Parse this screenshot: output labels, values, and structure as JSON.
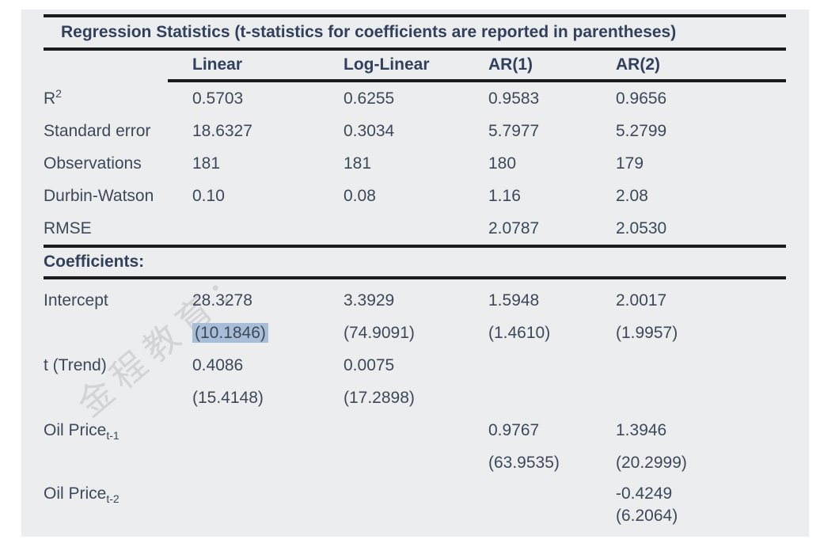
{
  "watermark": {
    "text": "金程教育："
  },
  "colors": {
    "page_background": "#ffffff",
    "panel_background": "#ebedee",
    "body_text": "#3d4859",
    "heading_text": "#33405c",
    "rule": "#1a1c20",
    "highlight": "#a8bed8",
    "watermark": "#d2d3d5"
  },
  "table": {
    "title": "Regression Statistics (t-statistics for coefficients are reported in parentheses)",
    "columns": [
      "Linear",
      "Log-Linear",
      "AR(1)",
      "AR(2)"
    ],
    "stats_rows": [
      {
        "label": "R",
        "label_sup": "2",
        "values": [
          "0.5703",
          "0.6255",
          "0.9583",
          "0.9656"
        ]
      },
      {
        "label": "Standard error",
        "values": [
          "18.6327",
          "0.3034",
          "5.7977",
          "5.2799"
        ]
      },
      {
        "label": "Observations",
        "values": [
          "181",
          "181",
          "180",
          "179"
        ]
      },
      {
        "label": "Durbin-Watson",
        "values": [
          "0.10",
          "0.08",
          "1.16",
          "2.08"
        ]
      },
      {
        "label": "RMSE",
        "values": [
          "",
          "",
          "2.0787",
          "2.0530"
        ]
      }
    ],
    "section_label": "Coefficients:",
    "coef_rows": [
      {
        "label": "Intercept",
        "values": [
          "28.3278",
          "3.3929",
          "1.5948",
          "2.0017"
        ],
        "tstats": [
          "(10.1846)",
          "(74.9091)",
          "(1.4610)",
          "(1.9957)"
        ],
        "highlighted_tstat": "(10.1846)"
      },
      {
        "label": "t (Trend)",
        "values": [
          "0.4086",
          "0.0075",
          "",
          ""
        ],
        "tstats": [
          "(15.4148)",
          "(17.2898)",
          "",
          ""
        ]
      },
      {
        "label": "Oil Price",
        "label_sub": "t-1",
        "values": [
          "",
          "",
          "0.9767",
          "1.3946"
        ],
        "tstats": [
          "",
          "",
          "(63.9535)",
          "(20.2999)"
        ]
      },
      {
        "label": "Oil Price",
        "label_sub": "t-2",
        "values": [
          "",
          "",
          "",
          "-0.4249"
        ],
        "tstats": [
          "",
          "",
          "",
          "(6.2064)"
        ]
      }
    ]
  }
}
